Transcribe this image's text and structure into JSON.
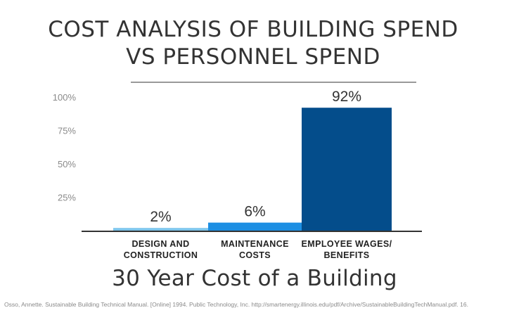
{
  "chart_data": {
    "type": "bar",
    "title_lines": [
      "COST ANALYSIS OF BUILDING SPEND",
      "VS PERSONNEL SPEND"
    ],
    "subtitle": "30 Year Cost of a Building",
    "categories": [
      [
        "DESIGN AND",
        "CONSTRUCTION"
      ],
      [
        "MAINTENANCE",
        "COSTS"
      ],
      [
        "EMPLOYEE WAGES/",
        "BENEFITS"
      ]
    ],
    "values": [
      2,
      6,
      92
    ],
    "data_labels": [
      "2%",
      "6%",
      "92%"
    ],
    "colors": [
      "#7ec6ec",
      "#1d8fe3",
      "#044d8b"
    ],
    "y_ticks": [
      25,
      50,
      75,
      100
    ],
    "y_tick_labels": [
      "25%",
      "50%",
      "75%",
      "100%"
    ],
    "ylim": [
      0,
      100
    ],
    "grid": false,
    "citation": "Osso, Annette. Sustainable Building Technical Manual. [Online] 1994. Public Technology, Inc. http://smartenergy.illinois.edu/pdf/Archive/SustainableBuildingTechManual.pdf. 16."
  }
}
